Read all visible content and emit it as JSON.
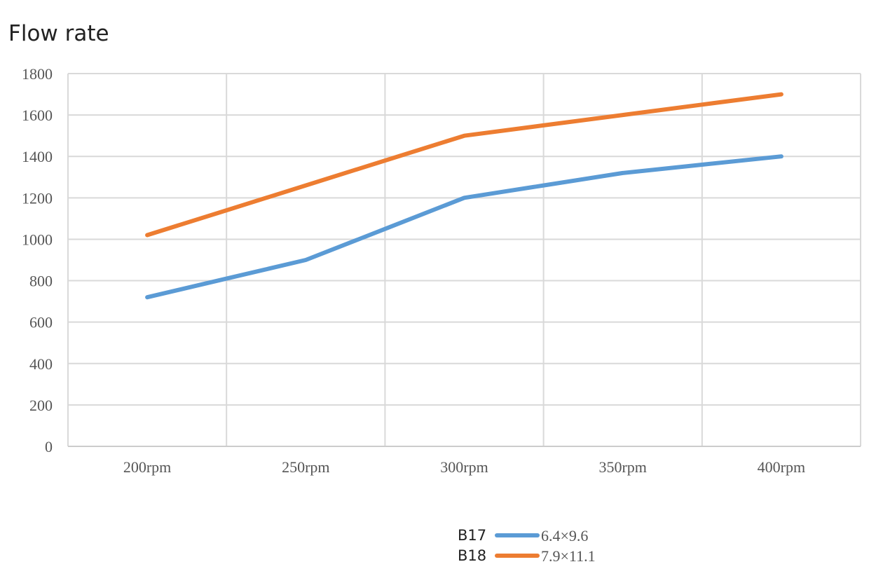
{
  "chart_data": {
    "type": "line",
    "title": "Flow rate",
    "xlabel": "",
    "ylabel": "",
    "categories": [
      "200rpm",
      "250rpm",
      "300rpm",
      "350rpm",
      "400rpm"
    ],
    "ylim": [
      0,
      1800
    ],
    "yticks": [
      0,
      200,
      400,
      600,
      800,
      1000,
      1200,
      1400,
      1600,
      1800
    ],
    "grid": true,
    "legend_position": "bottom",
    "series": [
      {
        "name": "B17",
        "legend_text": "6.4×9.6",
        "color": "#5b9bd5",
        "x": [
          "200rpm",
          "225rpm",
          "250rpm",
          "275rpm",
          "300rpm",
          "325rpm",
          "350rpm",
          "375rpm",
          "400rpm"
        ],
        "values": [
          720,
          810,
          900,
          1050,
          1200,
          1260,
          1320,
          1360,
          1400
        ]
      },
      {
        "name": "B18",
        "legend_text": "7.9×11.1",
        "color": "#ed7d31",
        "x": [
          "200rpm",
          "225rpm",
          "250rpm",
          "275rpm",
          "300rpm",
          "325rpm",
          "350rpm",
          "375rpm",
          "400rpm"
        ],
        "values": [
          1020,
          1140,
          1260,
          1380,
          1500,
          1550,
          1600,
          1650,
          1700
        ]
      }
    ]
  }
}
